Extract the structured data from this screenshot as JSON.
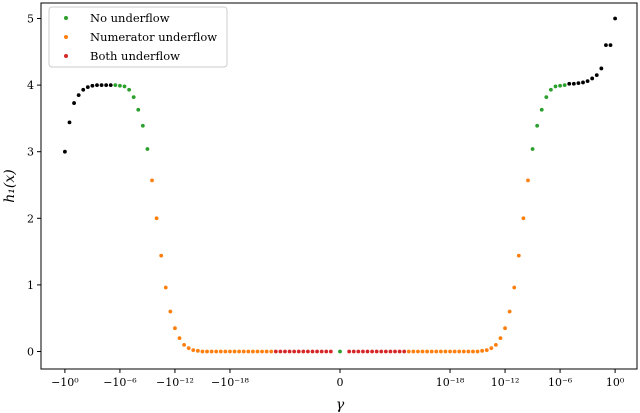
{
  "chart_data": {
    "type": "scatter",
    "xlabel": "γ",
    "ylabel": "h₁(x)",
    "ylim": [
      0,
      5
    ],
    "yticks": [
      0,
      1,
      2,
      3,
      4,
      5
    ],
    "x_scale": "symlog",
    "xlim_exponent_units": [
      -31,
      31
    ],
    "xticks": [
      {
        "label": "−10⁰",
        "value": -1
      },
      {
        "label": "−10⁻⁶",
        "value": -1e-06
      },
      {
        "label": "−10⁻¹²",
        "value": -1e-12
      },
      {
        "label": "−10⁻¹⁸",
        "value": -1e-18
      },
      {
        "label": "0",
        "value": 0
      },
      {
        "label": "10⁻¹⁸",
        "value": 1e-18
      },
      {
        "label": "10⁻¹²",
        "value": 1e-12
      },
      {
        "label": "10⁻⁶",
        "value": 1e-06
      },
      {
        "label": "10⁰",
        "value": 1
      }
    ],
    "legend": {
      "position": "top-left",
      "entries": [
        {
          "label": "No underflow",
          "color": "#2ca02c"
        },
        {
          "label": "Numerator underflow",
          "color": "#ff7f0e"
        },
        {
          "label": "Both underflow",
          "color": "#d62728"
        }
      ]
    },
    "colors": {
      "no_underflow": "#2ca02c",
      "numerator_underflow": "#ff7f0e",
      "both_underflow": "#d62728",
      "other": "#000000"
    },
    "series": [
      {
        "color": "#000000",
        "points_log10_abs_gamma": {
          "negative": [
            0,
            -0.5,
            -1,
            -1.5,
            -2,
            -2.5,
            -3,
            -3.5,
            -4,
            -4.5,
            -5
          ],
          "positive": [
            -5,
            -4.5,
            -4,
            -3.5,
            -3,
            -2.5,
            -2,
            -1.5,
            -1,
            -0.5,
            0
          ]
        },
        "y": {
          "negative": [
            3.0,
            3.44,
            3.73,
            3.85,
            3.93,
            3.97,
            3.99,
            4.0,
            4.0,
            4.0,
            4.0
          ],
          "positive": [
            4.02,
            4.02,
            4.03,
            4.04,
            4.06,
            4.1,
            4.15,
            4.25,
            4.6,
            4.6,
            5.0
          ]
        }
      },
      {
        "name": "No underflow",
        "color": "#2ca02c",
        "points_log10_abs_gamma": {
          "negative": [
            -5.5,
            -6,
            -6.5,
            -7,
            -7.5,
            -8,
            -8.5,
            -9
          ],
          "positive": [
            -9,
            -8.5,
            -8,
            -7.5,
            -7,
            -6.5,
            -6,
            -5.5
          ],
          "zero": [
            0
          ]
        },
        "y": {
          "negative": [
            4.0,
            3.99,
            3.98,
            3.93,
            3.82,
            3.63,
            3.39,
            3.04
          ],
          "positive": [
            3.04,
            3.39,
            3.63,
            3.82,
            3.93,
            3.98,
            3.99,
            4.0
          ],
          "zero": [
            0
          ]
        }
      },
      {
        "name": "Numerator underflow",
        "color": "#ff7f0e",
        "points_log10_abs_gamma": {
          "negative": [
            -9.5,
            -10,
            -10.5,
            -11,
            -11.5,
            -12,
            -12.5,
            -13,
            -13.5,
            -14,
            -14.5,
            -15,
            -15.5,
            -16,
            -16.5,
            -17,
            -17.5,
            -18,
            -18.5,
            -19,
            -19.5,
            -20,
            -20.5,
            -21,
            -21.5,
            -22,
            -22.5
          ],
          "positive": [
            -22.5,
            -22,
            -21.5,
            -21,
            -20.5,
            -20,
            -19.5,
            -19,
            -18.5,
            -18,
            -17.5,
            -17,
            -16.5,
            -16,
            -15.5,
            -15,
            -14.5,
            -14,
            -13.5,
            -13,
            -12.5,
            -12,
            -11.5,
            -11,
            -10.5,
            -10,
            -9.5
          ]
        },
        "y": {
          "negative": [
            2.57,
            2.0,
            1.44,
            0.96,
            0.6,
            0.35,
            0.2,
            0.1,
            0.05,
            0.02,
            0.01,
            0,
            0,
            0,
            0,
            0,
            0,
            0,
            0,
            0,
            0,
            0,
            0,
            0,
            0,
            0,
            0
          ],
          "positive": [
            0,
            0,
            0,
            0,
            0,
            0,
            0,
            0,
            0,
            0,
            0,
            0,
            0,
            0,
            0,
            0,
            0.01,
            0.02,
            0.05,
            0.1,
            0.2,
            0.35,
            0.6,
            0.96,
            1.44,
            2.0,
            2.57
          ]
        }
      },
      {
        "name": "Both underflow",
        "color": "#d62728",
        "points_log10_abs_gamma": {
          "negative": [
            -23,
            -23.5,
            -24,
            -24.5,
            -25,
            -25.5,
            -26,
            -26.5,
            -27,
            -27.5,
            -28,
            -28.5,
            -29
          ],
          "positive": [
            -29,
            -28.5,
            -28,
            -27.5,
            -27,
            -26.5,
            -26,
            -25.5,
            -25,
            -24.5,
            -24,
            -23.5,
            -23
          ]
        },
        "y": {
          "negative": [
            0,
            0,
            0,
            0,
            0,
            0,
            0,
            0,
            0,
            0,
            0,
            0,
            0
          ],
          "positive": [
            0,
            0,
            0,
            0,
            0,
            0,
            0,
            0,
            0,
            0,
            0,
            0,
            0
          ]
        }
      }
    ]
  }
}
